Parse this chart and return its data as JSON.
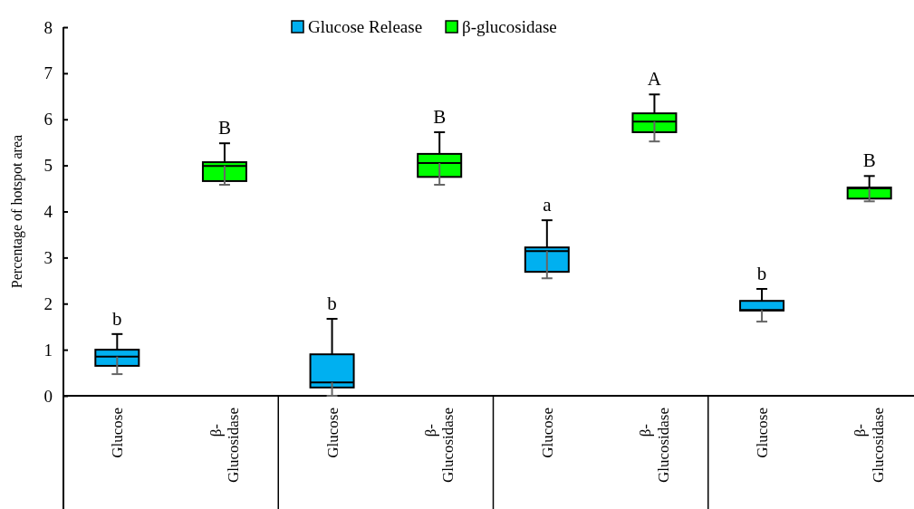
{
  "chart_data": {
    "type": "box",
    "ylabel": "Percentage of hotspot area",
    "categories": [
      "Glucose",
      "β-Glucosidase",
      "Glucose",
      "β-Glucosidase",
      "Glucose",
      "β-Glucosidase",
      "Glucose",
      "β-Glucosidase"
    ],
    "ylim": [
      0,
      8
    ],
    "yticks": [
      0,
      1,
      2,
      3,
      4,
      5,
      6,
      7,
      8
    ],
    "legend": "top",
    "grid": false,
    "series": [
      {
        "name": "Glucose Release",
        "color": "#00b0f0",
        "boxes": [
          {
            "low": 0.47,
            "q1": 0.65,
            "median": 0.85,
            "q3": 1.0,
            "high": 1.34
          },
          null,
          {
            "low": 0,
            "q1": 0.18,
            "median": 0.29,
            "q3": 0.9,
            "high": 1.67
          },
          null,
          {
            "low": 2.55,
            "q1": 2.69,
            "median": 3.14,
            "q3": 3.22,
            "high": 3.81
          },
          null,
          {
            "low": 1.61,
            "q1": 1.85,
            "median": 1.86,
            "q3": 2.06,
            "high": 2.32
          },
          null
        ]
      },
      {
        "name": "β-glucosidase",
        "color": "#00ff00",
        "boxes": [
          null,
          {
            "low": 4.58,
            "q1": 4.66,
            "median": 4.99,
            "q3": 5.07,
            "high": 5.48
          },
          null,
          {
            "low": 4.58,
            "q1": 4.75,
            "median": 5.05,
            "q3": 5.25,
            "high": 5.72
          },
          null,
          {
            "low": 5.52,
            "q1": 5.72,
            "median": 5.95,
            "q3": 6.13,
            "high": 6.54
          },
          null,
          {
            "low": 4.22,
            "q1": 4.28,
            "median": 4.5,
            "q3": 4.52,
            "high": 4.77
          }
        ]
      }
    ],
    "annotations": [
      "b",
      "B",
      "b",
      "B",
      "a",
      "A",
      "b",
      "B"
    ]
  }
}
